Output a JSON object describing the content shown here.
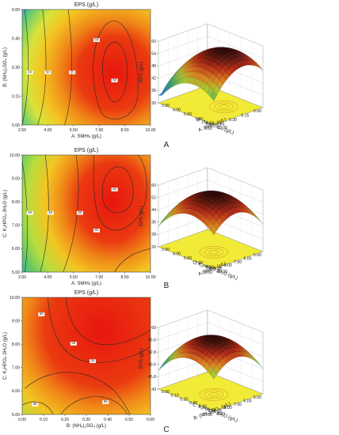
{
  "chart_data": [
    {
      "type": "contour",
      "title": "EPS (g/L)",
      "xlabel": "A: SMHs (g/L)",
      "ylabel": "B: (NH₄)₂SO₄ (g/L)",
      "xlim": [
        2.5,
        10.0
      ],
      "ylim": [
        0.0,
        0.6
      ],
      "xticks": [
        "2.50",
        "4.00",
        "5.50",
        "7.00",
        "8.50",
        "10.00"
      ],
      "yticks": [
        "0.00",
        "0.15",
        "0.30",
        "0.45",
        "0.60"
      ],
      "contour_levels": [
        "40",
        "45",
        "50",
        "55",
        "60"
      ]
    },
    {
      "type": "surface",
      "zlabel": "EPS (g/L)",
      "xlabel": "A: SMHs (g/L)",
      "ylabel": "B: (NH₄)₂SO₄ (g/L)",
      "zticks": [
        "30",
        "36",
        "42",
        "48",
        "54",
        "60"
      ],
      "xticks": [
        "2.50",
        "4.00",
        "5.50",
        "7.00",
        "8.50",
        "10.00"
      ],
      "yticks": [
        "0.00",
        "0.15",
        "0.30",
        "0.45",
        "0.60"
      ]
    },
    {
      "type": "contour",
      "title": "EPS (g/L)",
      "xlabel": "A: SMHs (g/L)",
      "ylabel": "C: K₂HPO₄·3H₂O (g/L)",
      "xlim": [
        2.5,
        10.0
      ],
      "ylim": [
        5.0,
        10.0
      ],
      "xticks": [
        "2.50",
        "4.00",
        "5.50",
        "7.00",
        "8.50",
        "10.00"
      ],
      "yticks": [
        "5.00",
        "6.00",
        "7.00",
        "8.00",
        "9.00",
        "10.00"
      ],
      "contour_levels": [
        "30",
        "40",
        "50",
        "55",
        "60"
      ]
    },
    {
      "type": "surface",
      "zlabel": "EPS (g/L)",
      "xlabel": "A: SMHs (g/L)",
      "ylabel": "C: K₂HPO₄·3H₂O (g/L)",
      "zticks": [
        "20",
        "28",
        "36",
        "44",
        "52",
        "60"
      ],
      "xticks": [
        "2.50",
        "4.00",
        "5.50",
        "7.00",
        "8.50",
        "10.00"
      ],
      "yticks": [
        "5.00",
        "6.00",
        "7.00",
        "8.00",
        "9.00",
        "10.00"
      ]
    },
    {
      "type": "contour",
      "title": "EPS (g/L)",
      "xlabel": "B: (NH₄)₂SO₄ (g/L)",
      "ylabel": "C: K₂HPO₄·3H₂O (g/L)",
      "xlim": [
        0.0,
        0.6
      ],
      "ylim": [
        5.0,
        10.0
      ],
      "xticks": [
        "0.00",
        "0.10",
        "0.20",
        "0.30",
        "0.40",
        "0.50",
        "0.60"
      ],
      "yticks": [
        "5.00",
        "6.00",
        "7.00",
        "8.00",
        "9.00",
        "10.00"
      ],
      "contour_levels": [
        "50",
        "54",
        "56",
        "58"
      ]
    },
    {
      "type": "surface",
      "zlabel": "EPS (g/L)",
      "xlabel": "B: (NH₄)₂SO₄ (g/L)",
      "ylabel": "C: K₂HPO₄·3H₂O (g/L)",
      "zticks": [
        "43",
        "45.8",
        "49.6",
        "52.8",
        "56.6",
        "60"
      ],
      "xticks": [
        "0.00",
        "0.10",
        "0.20",
        "0.30",
        "0.40",
        "0.50",
        "0.60"
      ],
      "yticks": [
        "5.00",
        "6.00",
        "7.00",
        "8.00",
        "9.00",
        "10.00"
      ]
    }
  ],
  "panel_labels": [
    "A",
    "B",
    "C"
  ],
  "colors": {
    "low": "#1e6fd9",
    "mid": "#f0e030",
    "high": "#e02010",
    "floor": "#f1ea36"
  }
}
